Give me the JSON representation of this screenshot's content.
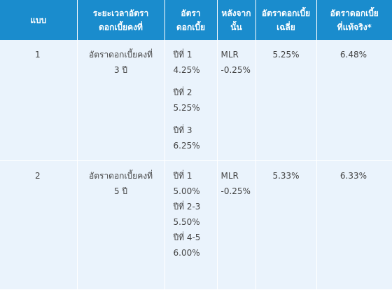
{
  "header": {
    "plan": "แบบ",
    "period": [
      "ระยะเวลาอัตรา",
      "ดอกเบี้ยคงที่"
    ],
    "rate": [
      "อัตรา",
      "ดอกเบี้ย"
    ],
    "after": [
      "หลังจาก",
      "นั้น"
    ],
    "average": [
      "อัตราดอกเบี้ย",
      "เฉลี่ย"
    ],
    "actual": [
      "อัตราดอกเบี้ย",
      "ที่แท้จริง*"
    ]
  },
  "rows": [
    {
      "plan": "1",
      "period": [
        "อัตราดอกเบี้ยคงที่",
        "3 ปี"
      ],
      "rates": [
        [
          "ปีที่ 1",
          "4.25%"
        ],
        [
          "ปีที่ 2",
          "5.25%"
        ],
        [
          "ปีที่ 3",
          "6.25%"
        ]
      ],
      "after": [
        "MLR",
        "-0.25%"
      ],
      "average": "5.25%",
      "actual": "6.48%"
    },
    {
      "plan": "2",
      "period": [
        "อัตราดอกเบี้ยคงที่",
        "5 ปี"
      ],
      "rates": [
        "ปีที่ 1",
        "5.00%",
        "ปีที่ 2-3",
        "5.50%",
        "ปีที่ 4-5",
        "6.00%"
      ],
      "after": [
        "MLR",
        "-0.25%"
      ],
      "average": "5.33%",
      "actual": "6.33%"
    }
  ]
}
